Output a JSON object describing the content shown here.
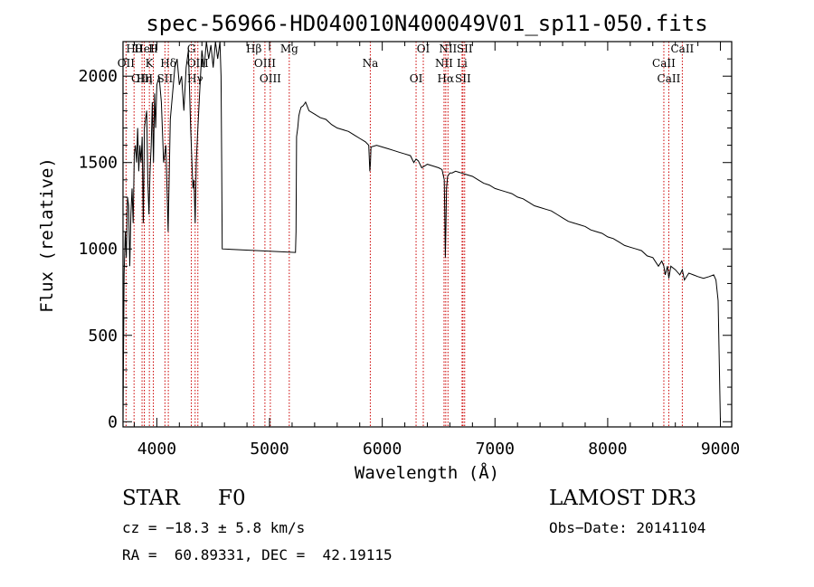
{
  "chart_data": {
    "type": "line",
    "title": "spec-56966-HD040010N400049V01_sp11-050.fits",
    "xlabel": "Wavelength (Å)",
    "ylabel": "Flux (relative)",
    "xlim": [
      3700,
      9100
    ],
    "ylim": [
      -30,
      2200
    ],
    "xticks": [
      4000,
      5000,
      6000,
      7000,
      8000,
      9000
    ],
    "yticks": [
      0,
      500,
      1000,
      1500,
      2000
    ],
    "series": [
      {
        "name": "flux",
        "x": [
          3700,
          3710,
          3720,
          3730,
          3740,
          3750,
          3760,
          3770,
          3780,
          3790,
          3800,
          3810,
          3820,
          3830,
          3840,
          3850,
          3860,
          3870,
          3880,
          3890,
          3900,
          3910,
          3920,
          3930,
          3940,
          3950,
          3960,
          3970,
          3980,
          3990,
          4000,
          4020,
          4040,
          4060,
          4080,
          4100,
          4120,
          4140,
          4160,
          4180,
          4200,
          4220,
          4240,
          4260,
          4280,
          4300,
          4320,
          4330,
          4340,
          4350,
          4360,
          4380,
          4400,
          4420,
          4440,
          4460,
          4480,
          4500,
          4520,
          4540,
          4560,
          4570,
          4575,
          4580,
          5230,
          5235,
          5240,
          5250,
          5260,
          5270,
          5280,
          5300,
          5320,
          5350,
          5400,
          5450,
          5500,
          5550,
          5600,
          5650,
          5700,
          5750,
          5800,
          5850,
          5880,
          5890,
          5895,
          5900,
          5950,
          6000,
          6050,
          6100,
          6150,
          6200,
          6250,
          6280,
          6300,
          6320,
          6350,
          6400,
          6450,
          6500,
          6530,
          6550,
          6555,
          6560,
          6565,
          6570,
          6580,
          6600,
          6620,
          6650,
          6700,
          6750,
          6800,
          6850,
          6900,
          6950,
          7000,
          7050,
          7100,
          7150,
          7200,
          7250,
          7300,
          7350,
          7400,
          7450,
          7500,
          7550,
          7600,
          7650,
          7700,
          7750,
          7800,
          7850,
          7900,
          7950,
          8000,
          8050,
          8100,
          8150,
          8200,
          8250,
          8300,
          8350,
          8400,
          8450,
          8480,
          8498,
          8510,
          8530,
          8542,
          8560,
          8600,
          8640,
          8662,
          8680,
          8720,
          8760,
          8800,
          8850,
          8900,
          8940,
          8960,
          8980,
          9000
        ],
        "values": [
          0,
          850,
          1100,
          950,
          1300,
          1250,
          900,
          1200,
          1350,
          1150,
          1550,
          1600,
          1500,
          1700,
          1450,
          1600,
          1500,
          1650,
          1150,
          1700,
          1750,
          1800,
          1400,
          1200,
          1450,
          1600,
          1850,
          1500,
          1900,
          1700,
          1950,
          2000,
          1850,
          1500,
          1600,
          1100,
          1750,
          1900,
          2050,
          2100,
          1950,
          2000,
          1800,
          2050,
          2150,
          1700,
          1350,
          1400,
          1150,
          1500,
          1650,
          1900,
          2150,
          2050,
          2200,
          2100,
          2180,
          2050,
          2200,
          2100,
          2250,
          2000,
          1500,
          1000,
          980,
          1100,
          1650,
          1700,
          1770,
          1800,
          1820,
          1830,
          1850,
          1800,
          1780,
          1760,
          1750,
          1720,
          1700,
          1690,
          1680,
          1660,
          1640,
          1620,
          1600,
          1450,
          1500,
          1590,
          1600,
          1590,
          1580,
          1570,
          1560,
          1550,
          1540,
          1500,
          1520,
          1510,
          1470,
          1490,
          1480,
          1470,
          1460,
          1400,
          1200,
          950,
          1150,
          1350,
          1420,
          1440,
          1440,
          1450,
          1440,
          1430,
          1420,
          1400,
          1380,
          1370,
          1350,
          1340,
          1330,
          1320,
          1300,
          1290,
          1270,
          1250,
          1240,
          1230,
          1220,
          1200,
          1180,
          1160,
          1150,
          1140,
          1130,
          1110,
          1100,
          1090,
          1070,
          1060,
          1040,
          1020,
          1010,
          1000,
          990,
          960,
          950,
          900,
          930,
          900,
          850,
          900,
          830,
          900,
          880,
          850,
          880,
          820,
          860,
          850,
          840,
          830,
          840,
          850,
          820,
          700,
          0
        ]
      }
    ],
    "spectral_lines": [
      {
        "label": "Hθ",
        "wavelength": 3798
      },
      {
        "label": "OII",
        "wavelength": 3727
      },
      {
        "label": "OIII",
        "wavelength": 3869
      },
      {
        "label": "HeI",
        "wavelength": 3889
      },
      {
        "label": "K",
        "wavelength": 3934
      },
      {
        "label": "Hη",
        "wavelength": 3889
      },
      {
        "label": "H",
        "wavelength": 3969
      },
      {
        "label": "Hδ",
        "wavelength": 4102
      },
      {
        "label": "SII",
        "wavelength": 4072
      },
      {
        "label": "G",
        "wavelength": 4306
      },
      {
        "label": "OIII",
        "wavelength": 4364
      },
      {
        "label": "Hγ",
        "wavelength": 4340
      },
      {
        "label": "Hβ",
        "wavelength": 4861
      },
      {
        "label": "OIII",
        "wavelength": 4959
      },
      {
        "label": "OIII",
        "wavelength": 5007
      },
      {
        "label": "Mg",
        "wavelength": 5175
      },
      {
        "label": "Na",
        "wavelength": 5894
      },
      {
        "label": "OI",
        "wavelength": 6300
      },
      {
        "label": "OI",
        "wavelength": 6364
      },
      {
        "label": "NII",
        "wavelength": 6548
      },
      {
        "label": "Hα",
        "wavelength": 6563
      },
      {
        "label": "NII",
        "wavelength": 6583
      },
      {
        "label": "Li",
        "wavelength": 6708
      },
      {
        "label": "SII",
        "wavelength": 6716
      },
      {
        "label": "SII",
        "wavelength": 6731
      },
      {
        "label": "CaII",
        "wavelength": 8498
      },
      {
        "label": "CaII",
        "wavelength": 8542
      },
      {
        "label": "CaII",
        "wavelength": 8662
      }
    ]
  },
  "info": {
    "object_type": "STAR",
    "subclass": "F0",
    "survey": "LAMOST DR3",
    "cz": "cz = −18.3 ± 5.8 km/s",
    "obs_date": "Obs−Date: 20141104",
    "coords": "RA =  60.89331, DEC =  42.19115"
  },
  "colors": {
    "line_marker": "#cc0000",
    "spectrum": "#000000",
    "axes": "#000000"
  }
}
